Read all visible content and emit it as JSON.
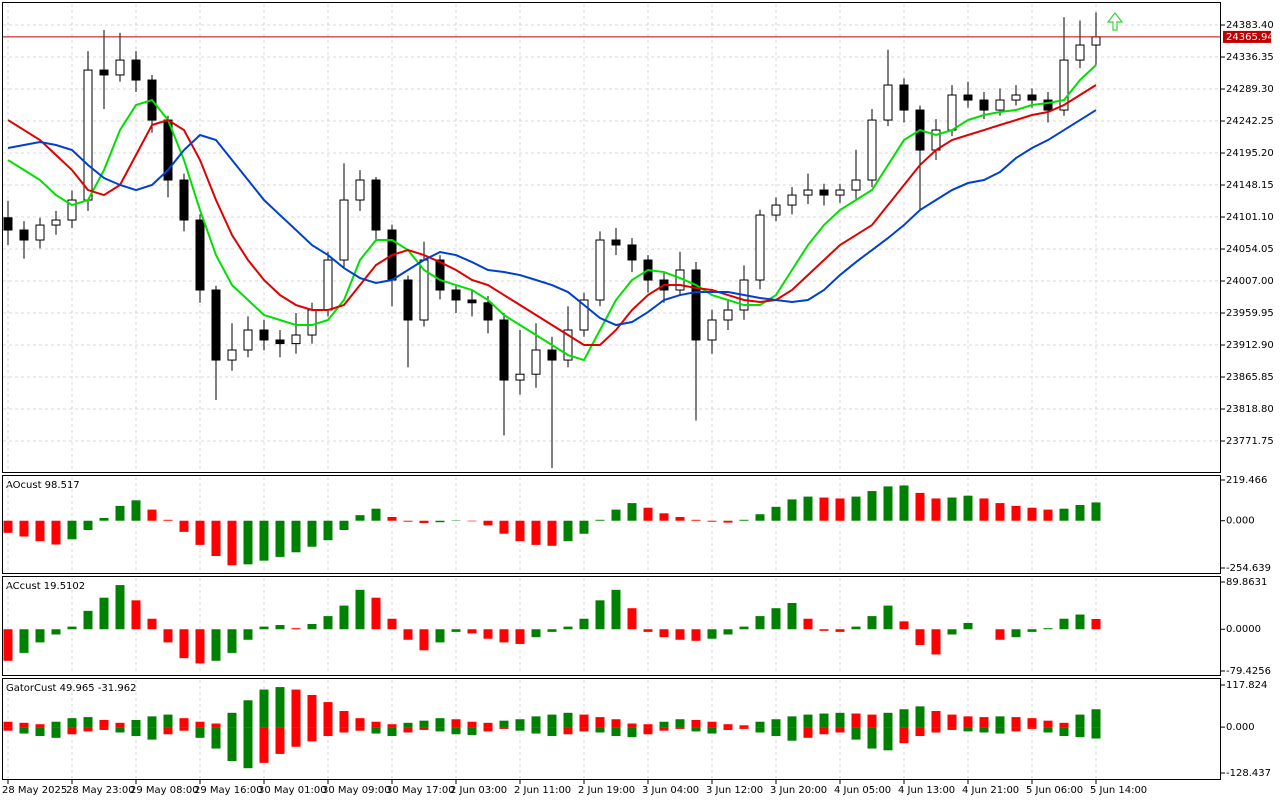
{
  "chart_data": [
    {
      "type": "candlestick",
      "categories": [
        "28 May 2025",
        null,
        null,
        null,
        "28 May 23:00",
        null,
        null,
        null,
        "29 May 08:00",
        null,
        null,
        null,
        "29 May 16:00",
        null,
        null,
        null,
        "30 May 01:00",
        null,
        null,
        null,
        "30 May 09:00",
        null,
        null,
        null,
        "30 May 17:00",
        null,
        null,
        null,
        "2 Jun 03:00",
        null,
        null,
        null,
        "2 Jun 11:00",
        null,
        null,
        null,
        "2 Jun 19:00",
        null,
        null,
        null,
        "3 Jun 04:00",
        null,
        null,
        null,
        "3 Jun 12:00",
        null,
        null,
        null,
        "3 Jun 20:00",
        null,
        null,
        null,
        "4 Jun 05:00",
        null,
        null,
        null,
        "4 Jun 13:00",
        null,
        null,
        null,
        "4 Jun 21:00",
        null,
        null,
        null,
        "5 Jun 06:00",
        null,
        null,
        null,
        "5 Jun 14:00"
      ],
      "open": [
        24100,
        24082.0,
        24067.3,
        24089.3,
        24096.7,
        24126.1,
        24317.2,
        24310.0,
        24331.9,
        24302.5,
        24243.7,
        24155.5,
        24096.7,
        23993.8,
        23890.8,
        23905.6,
        23935.0,
        23920.3,
        23915.0,
        23927.6,
        23964.4,
        24037.9,
        24126.1,
        24155.5,
        24082.0,
        24008.5,
        23949.7,
        24037.9,
        23993.8,
        23979.1,
        23975.0,
        23949.7,
        23861.4,
        23870.0,
        23905.6,
        23890.8,
        23935.0,
        23979.1,
        24067.3,
        24060.0,
        24037.9,
        24008.5,
        23993.8,
        24023.2,
        23920.3,
        23949.7,
        23964.4,
        24008.5,
        24104.0,
        24118.7,
        24133.4,
        24140.8,
        24133.4,
        24140.8,
        24155.5,
        24243.7,
        24295.2,
        24258.4,
        24199.6,
        24229.0,
        24280.5,
        24273.1,
        24258.4,
        24273.1,
        24280.5,
        24273.1,
        24258.4,
        24331.9,
        24354.0
      ],
      "high": [
        24125,
        24095,
        24100,
        24110,
        24140,
        24345,
        24376,
        24372,
        24345,
        24310,
        24250,
        24165,
        24105,
        24000,
        23945,
        23955,
        23950,
        23935,
        23960,
        23975,
        24050,
        24180,
        24170,
        24160,
        24090,
        24015,
        24065,
        24045,
        24000,
        23995,
        23985,
        23960,
        23935,
        23945,
        23925,
        23970,
        23990,
        24080,
        24085,
        24070,
        24045,
        24020,
        24050,
        24035,
        23965,
        23980,
        24030,
        24112,
        24130,
        24145,
        24165,
        24150,
        24150,
        24200,
        24260,
        24347,
        24305,
        24265,
        24245,
        24295,
        24300,
        24285,
        24290,
        24295,
        24290,
        24285,
        24395,
        24390,
        24402
      ],
      "low": [
        24060,
        24040,
        24055,
        24075,
        24085,
        24110,
        24260,
        24300,
        24285,
        24225,
        24130,
        24080,
        23975,
        23832,
        23875,
        23895,
        23905,
        23895,
        23900,
        23915,
        23955,
        24025,
        24110,
        24065,
        23970,
        23880,
        23940,
        23980,
        23960,
        23955,
        23930,
        23780,
        23840,
        23850,
        23732,
        23880,
        23925,
        23970,
        24045,
        24020,
        23990,
        23975,
        23985,
        23802,
        23900,
        23935,
        23950,
        23995,
        24095,
        24105,
        24120,
        24118,
        24122,
        24128,
        24145,
        24235,
        24240,
        24111,
        24185,
        24220,
        24262,
        24245,
        24250,
        24265,
        24262,
        24240,
        24250,
        24320,
        24325
      ],
      "close": [
        24082.0,
        24067.3,
        24089.3,
        24096.7,
        24126.1,
        24317.2,
        24310.0,
        24331.9,
        24302.5,
        24243.7,
        24155.5,
        24096.7,
        23993.8,
        23890.8,
        23905.6,
        23935.0,
        23920.3,
        23915.0,
        23927.6,
        23964.4,
        24037.9,
        24126.1,
        24155.5,
        24082.0,
        24008.5,
        23949.7,
        24037.9,
        23993.8,
        23979.1,
        23975.0,
        23949.7,
        23861.4,
        23870.0,
        23905.6,
        23890.8,
        23935.0,
        23979.1,
        24067.3,
        24060.0,
        24037.9,
        24008.5,
        23993.8,
        24023.2,
        23920.3,
        23949.7,
        23964.4,
        24008.5,
        24104.0,
        24118.7,
        24133.4,
        24140.8,
        24133.4,
        24140.8,
        24155.5,
        24243.7,
        24295.2,
        24258.4,
        24199.6,
        24229.0,
        24280.5,
        24273.1,
        24258.4,
        24273.1,
        24280.5,
        24273.1,
        24258.4,
        24331.9,
        24354.0,
        24365.94
      ],
      "up_color": "#ffffff",
      "down_color": "#000000",
      "series": [
        {
          "color": "#00e000",
          "values": [
            24184.9,
            24170.2,
            24155.5,
            24133.4,
            24118.7,
            24126.1,
            24170.2,
            24229.0,
            24265.8,
            24273.1,
            24243.7,
            24184.9,
            24111.4,
            24045.2,
            24001.1,
            23979.1,
            23957.0,
            23949.7,
            23942.3,
            23942.3,
            23949.7,
            23979.1,
            24037.9,
            24067.3,
            24067.3,
            24052.6,
            24023.2,
            24008.5,
            24001.1,
            23993.8,
            23979.1,
            23957.0,
            23942.3,
            23927.6,
            23912.9,
            23898.2,
            23890.8,
            23935.0,
            23979.1,
            24008.5,
            24023.2,
            24020.2,
            24011.4,
            24001.1,
            23986.4,
            23979.1,
            23971.7,
            23971.7,
            23986.4,
            24023.2,
            24059.9,
            24089.3,
            24111.4,
            24126.1,
            24140.8,
            24177.6,
            24214.3,
            24229.0,
            24221.7,
            24229.0,
            24243.7,
            24251.1,
            24255.5,
            24258.4,
            24265.8,
            24268.7,
            24273.1,
            24302.5,
            24324.6
          ]
        },
        {
          "color": "#e00000",
          "values": [
            24243.7,
            24229.0,
            24214.3,
            24192.3,
            24170.2,
            24140.8,
            24133.4,
            24148.2,
            24192.3,
            24236.4,
            24243.7,
            24229.0,
            24184.9,
            24126.1,
            24074.6,
            24037.9,
            24008.5,
            23986.4,
            23971.7,
            23964.4,
            23964.4,
            23971.7,
            24001.1,
            24030.5,
            24045.2,
            24052.6,
            24045.2,
            24034.9,
            24023.2,
            24008.5,
            24001.1,
            23986.4,
            23971.7,
            23957.0,
            23942.3,
            23927.6,
            23912.9,
            23912.9,
            23935.0,
            23964.4,
            23986.4,
            24001.1,
            24001.1,
            23996.7,
            23993.8,
            23986.4,
            23979.1,
            23976.1,
            23979.1,
            23993.8,
            24015.8,
            24037.9,
            24059.9,
            24074.6,
            24089.3,
            24118.7,
            24148.2,
            24177.6,
            24199.6,
            24214.3,
            24221.7,
            24229.0,
            24236.4,
            24243.7,
            24251.1,
            24255.5,
            24265.8,
            24280.5,
            24295.2
          ]
        },
        {
          "color": "#0040d0",
          "values": [
            24202.6,
            24207.0,
            24211.4,
            24207.0,
            24199.6,
            24177.6,
            24158.4,
            24148.2,
            24140.8,
            24148.2,
            24170.2,
            24199.6,
            24221.7,
            24214.3,
            24184.9,
            24155.5,
            24126.1,
            24104.0,
            24082.0,
            24059.9,
            24045.2,
            24026.1,
            24011.4,
            24004.1,
            24008.5,
            24023.2,
            24037.9,
            24049.6,
            24045.2,
            24034.9,
            24023.2,
            24020.2,
            24015.8,
            24008.5,
            24001.1,
            23990.8,
            23971.7,
            23952.6,
            23942.3,
            23946.7,
            23961.4,
            23979.1,
            23986.4,
            23990.8,
            23990.8,
            23990.8,
            23986.4,
            23982.0,
            23979.1,
            23976.1,
            23979.1,
            23993.8,
            24015.8,
            24034.9,
            24052.6,
            24070.2,
            24089.3,
            24111.4,
            24126.1,
            24140.8,
            24151.1,
            24155.5,
            24167.3,
            24187.8,
            24202.6,
            24214.3,
            24229.0,
            24243.7,
            24258.4
          ]
        }
      ],
      "current_price": 24365.94,
      "current_price_color": "#c00000",
      "ylim": [
        23726.2,
        24415.8
      ],
      "yticks": [
        {
          "value": 24383.4,
          "label": "24383.40"
        },
        24336.35,
        {
          "value": 24289.3,
          "label": "24289.30"
        },
        24242.25,
        {
          "value": 24195.2,
          "label": "24195.20"
        },
        24148.15,
        {
          "value": 24101.1,
          "label": "24101.10"
        },
        24054.05,
        {
          "value": 24007,
          "label": "24007.00"
        },
        23959.95,
        {
          "value": 23912.9,
          "label": "23912.90"
        },
        23865.85,
        {
          "value": 23818.8,
          "label": "23818.80"
        },
        23771.75
      ],
      "grid": true
    },
    {
      "type": "histogram",
      "title": "AOcust 98.517",
      "values": [
        -65,
        -85,
        -110,
        -128,
        -100,
        -50,
        15,
        80,
        110,
        60,
        5,
        -60,
        -130,
        -190,
        -240,
        -235,
        -215,
        -195,
        -170,
        -140,
        -105,
        -50,
        30,
        65,
        20,
        -5,
        -12,
        -8,
        2,
        -3,
        -25,
        -70,
        -110,
        -130,
        -135,
        -110,
        -70,
        5,
        60,
        95,
        70,
        40,
        20,
        5,
        -5,
        -10,
        5,
        35,
        75,
        115,
        130,
        125,
        120,
        130,
        160,
        185,
        190,
        150,
        120,
        125,
        135,
        120,
        95,
        80,
        70,
        60,
        65,
        85,
        98.517
      ],
      "up_color": "#008000",
      "down_color": "#ff0000",
      "ylim": [
        -254.639,
        219.466
      ],
      "yticks": [
        219.466,
        {
          "value": 0,
          "label": "0.000"
        },
        -254.639
      ]
    },
    {
      "type": "histogram",
      "title": "ACcust 19.5102",
      "values": [
        -60,
        -45,
        -25,
        -10,
        5,
        35,
        60,
        84,
        55,
        20,
        -25,
        -55,
        -65,
        -60,
        -45,
        -20,
        5,
        8,
        2,
        10,
        25,
        45,
        75,
        60,
        20,
        -20,
        -40,
        -25,
        -5,
        -8,
        -18,
        -25,
        -28,
        -15,
        -5,
        5,
        20,
        55,
        75,
        40,
        -5,
        -15,
        -20,
        -22,
        -18,
        -10,
        5,
        25,
        40,
        50,
        20,
        -3,
        -5,
        5,
        25,
        45,
        15,
        -30,
        -48,
        -10,
        12,
        0,
        -20,
        -15,
        -5,
        2,
        20,
        28,
        19.5102
      ],
      "up_color": "#008000",
      "down_color": "#ff0000",
      "ylim": [
        -79.4256,
        89.8631
      ],
      "yticks": [
        89.8631,
        {
          "value": 0,
          "label": "0.0000"
        },
        -79.4256
      ]
    },
    {
      "type": "gator",
      "title": "GatorCust 49.965 -31.962",
      "upper": [
        15,
        12,
        8,
        15,
        25,
        28,
        20,
        12,
        20,
        30,
        35,
        25,
        15,
        10,
        40,
        75,
        105,
        112,
        105,
        90,
        70,
        45,
        25,
        15,
        8,
        12,
        18,
        25,
        22,
        15,
        12,
        18,
        22,
        30,
        35,
        40,
        35,
        28,
        22,
        10,
        8,
        15,
        22,
        20,
        15,
        8,
        5,
        15,
        22,
        30,
        35,
        38,
        40,
        38,
        35,
        40,
        50,
        58,
        45,
        35,
        30,
        28,
        30,
        28,
        25,
        18,
        12,
        35,
        49.965
      ],
      "lower": [
        -10,
        -18,
        -25,
        -30,
        -20,
        -12,
        -8,
        -15,
        -25,
        -35,
        -20,
        -10,
        -30,
        -60,
        -95,
        -115,
        -100,
        -75,
        -55,
        -40,
        -25,
        -15,
        -10,
        -18,
        -25,
        -15,
        -8,
        -12,
        -20,
        -22,
        -12,
        -5,
        -10,
        -18,
        -25,
        -20,
        -12,
        -15,
        -25,
        -28,
        -20,
        -10,
        -5,
        -12,
        -18,
        -8,
        -5,
        -15,
        -25,
        -38,
        -30,
        -20,
        -15,
        -35,
        -60,
        -65,
        -45,
        -25,
        -15,
        -8,
        -12,
        -15,
        -18,
        -12,
        -5,
        -15,
        -25,
        -28,
        -31.962
      ],
      "up_color": "#008000",
      "down_color": "#ff0000",
      "ylim": [
        -128.437,
        117.824
      ],
      "yticks": [
        117.824,
        {
          "value": 0,
          "label": "0.000"
        },
        -128.437
      ]
    }
  ]
}
